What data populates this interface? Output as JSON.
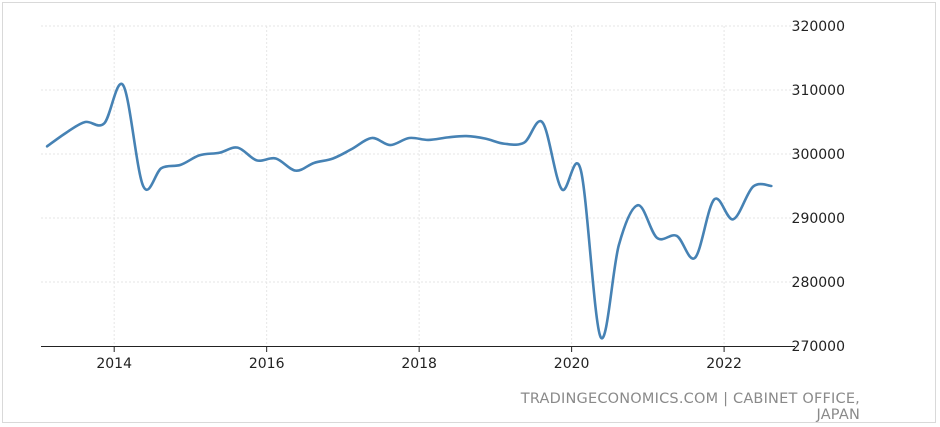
{
  "source_credit": "TRADINGECONOMICS.COM | CABINET OFFICE, JAPAN",
  "colors": {
    "line": "#4682b4",
    "grid": "#e6e6e6",
    "axis": "#222222",
    "label": "#222222",
    "source": "#8a8a8a"
  },
  "chart_data": {
    "type": "line",
    "title": "",
    "xlabel": "",
    "ylabel": "",
    "x_unit": "year",
    "xlim": [
      2013.04,
      2022.93
    ],
    "ylim": [
      270000,
      320000
    ],
    "y_ticks": [
      270000,
      280000,
      290000,
      300000,
      310000,
      320000
    ],
    "x_ticks": [
      2014,
      2016,
      2018,
      2020,
      2022
    ],
    "y_axis_position": "right",
    "grid": true,
    "legend": "none",
    "series": [
      {
        "x": [
          2013.12,
          2013.38,
          2013.62,
          2013.87,
          2014.12,
          2014.38,
          2014.62,
          2014.87,
          2015.12,
          2015.38,
          2015.62,
          2015.87,
          2016.12,
          2016.38,
          2016.62,
          2016.87,
          2017.12,
          2017.38,
          2017.62,
          2017.87,
          2018.12,
          2018.38,
          2018.62,
          2018.87,
          2019.12,
          2019.38,
          2019.62,
          2019.87,
          2020.12,
          2020.38,
          2020.62,
          2020.87,
          2021.12,
          2021.38,
          2021.62,
          2021.87,
          2022.12,
          2022.38,
          2022.62
        ],
        "y": [
          301200,
          303400,
          305000,
          304800,
          310700,
          295000,
          297800,
          298300,
          299800,
          300200,
          301000,
          299000,
          299300,
          297400,
          298600,
          299300,
          300800,
          302500,
          301400,
          302500,
          302200,
          302600,
          302800,
          302400,
          301600,
          301800,
          304900,
          294500,
          297500,
          271400,
          285800,
          292000,
          286900,
          287200,
          283800,
          292900,
          289800,
          294900,
          295000
        ]
      }
    ]
  }
}
